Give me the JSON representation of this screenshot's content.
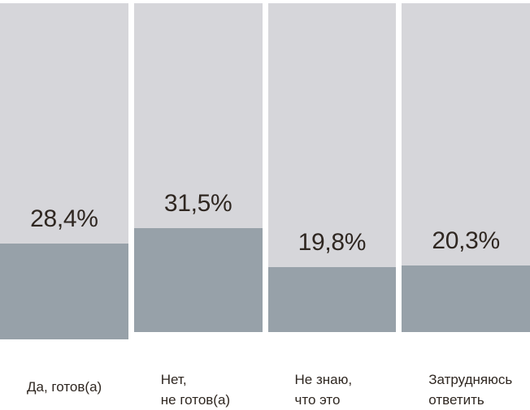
{
  "chart_data": {
    "type": "bar",
    "orientation": "vertical",
    "categories": [
      "Да, готов(а)",
      "Нет,\nне готов(а)",
      "Не знаю,\nчто это",
      "Затрудняюсь\nответить"
    ],
    "values": [
      28.4,
      31.5,
      19.8,
      20.3
    ],
    "value_labels": [
      "28,4%",
      "31,5%",
      "19,8%",
      "20,3%"
    ],
    "title": "",
    "xlabel": "",
    "ylabel": "",
    "ylim": [
      0,
      100
    ],
    "grid": false,
    "legend": "none",
    "colors": {
      "track": "#d6d6da",
      "fill": "#97a1a9",
      "text": "#2f2721",
      "background": "#ffffff"
    }
  }
}
